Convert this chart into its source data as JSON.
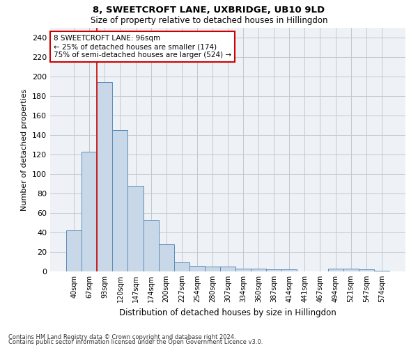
{
  "title1": "8, SWEETCROFT LANE, UXBRIDGE, UB10 9LD",
  "title2": "Size of property relative to detached houses in Hillingdon",
  "xlabel": "Distribution of detached houses by size in Hillingdon",
  "ylabel": "Number of detached properties",
  "categories": [
    "40sqm",
    "67sqm",
    "93sqm",
    "120sqm",
    "147sqm",
    "174sqm",
    "200sqm",
    "227sqm",
    "254sqm",
    "280sqm",
    "307sqm",
    "334sqm",
    "360sqm",
    "387sqm",
    "414sqm",
    "441sqm",
    "467sqm",
    "494sqm",
    "521sqm",
    "547sqm",
    "574sqm"
  ],
  "values": [
    42,
    123,
    194,
    145,
    88,
    53,
    28,
    9,
    6,
    5,
    5,
    3,
    3,
    2,
    2,
    0,
    0,
    3,
    3,
    2,
    1
  ],
  "bar_color": "#c8d8e8",
  "bar_edge_color": "#5b8db8",
  "bar_width": 1.0,
  "grid_color": "#c0c8d0",
  "bg_color": "#eef2f6",
  "annotation_text": "8 SWEETCROFT LANE: 96sqm\n← 25% of detached houses are smaller (174)\n75% of semi-detached houses are larger (524) →",
  "annotation_box_color": "#ffffff",
  "annotation_box_edge": "#cc0000",
  "vline_x": 1.5,
  "vline_color": "#cc0000",
  "ylim": [
    0,
    250
  ],
  "yticks": [
    0,
    20,
    40,
    60,
    80,
    100,
    120,
    140,
    160,
    180,
    200,
    220,
    240
  ],
  "footer1": "Contains HM Land Registry data © Crown copyright and database right 2024.",
  "footer2": "Contains public sector information licensed under the Open Government Licence v3.0."
}
